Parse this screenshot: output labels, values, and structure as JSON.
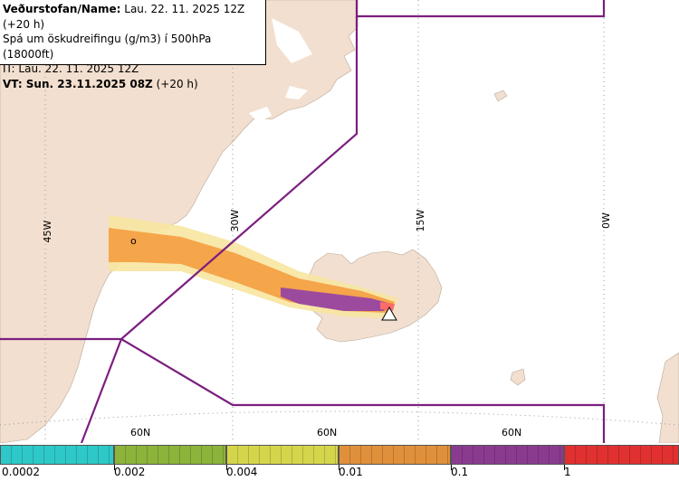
{
  "info": {
    "line1_label": "Veðurstofan/Name:",
    "line1_value": "Lau. 22. 11. 2025 12Z (+20 h)",
    "line2": "Spá um öskudreifingu (g/m3) í 500hPa (18000ft)",
    "line3": "IT: Lau. 22. 11. 2025 12Z",
    "line4_label": "VT: Sun. 23.11.2025 08Z",
    "line4_value": "(+20 h)"
  },
  "map": {
    "meridian_labels": [
      "45W",
      "30W",
      "15W",
      "0W"
    ],
    "parallel_labels": [
      "60N",
      "60N",
      "60N"
    ],
    "source_marker_label": "o",
    "colors": {
      "land": "#f2dfcf",
      "sea": "#ffffff",
      "fir_boundary": "#7b1f7f",
      "grid": "#999999",
      "ash_orange": "#f5a54a",
      "ash_purple": "#9c4a9d",
      "ash_pink": "#ff6a6a",
      "ash_light": "#f7e6a0"
    }
  },
  "legend": {
    "colors": [
      "#2ec8c8",
      "#8cb33a",
      "#d5d54b",
      "#e0903a",
      "#8a3b8f",
      "#e03030"
    ],
    "tick_labels": [
      "0.0002",
      "0.002",
      "0.004",
      "0.01",
      "0.1",
      "1"
    ]
  }
}
